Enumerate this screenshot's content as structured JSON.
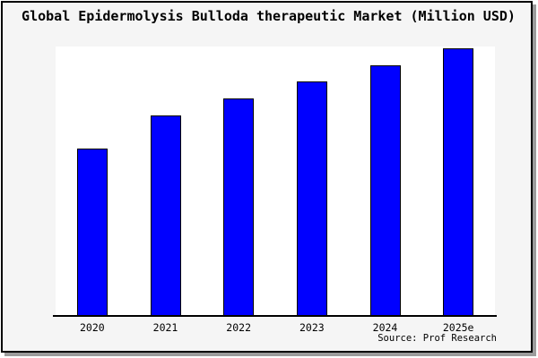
{
  "window": {
    "title": "Global Epidermolysis Bulloda therapeutic Market (Million USD)",
    "source_label": "Source: Prof Research"
  },
  "chart_data": {
    "type": "bar",
    "title": "Global Epidermolysis Bulloda therapeutic Market (Million USD)",
    "categories": [
      "2020",
      "2021",
      "2022",
      "2023",
      "2024",
      "2025e"
    ],
    "values": [
      62.8,
      75.1,
      81.4,
      87.7,
      93.7,
      100
    ],
    "values_note": "No y-axis ticks or data labels shown in image; values are relative bar heights normalized to 2025e = 100",
    "xlabel": "",
    "ylabel": "",
    "ylim": [
      0,
      100.3
    ],
    "grid": false,
    "legend": null,
    "source": "Source: Prof Research",
    "bar_color": "#0000ff",
    "bar_edge_color": "#000000"
  },
  "colors": {
    "window_background": "#f5f5f5",
    "plot_background": "#ffffff",
    "frame_border": "#000000",
    "frame_shadow": "#9c9c9c",
    "bar_fill": "#0000ff",
    "bar_edge": "#000000",
    "text": "#000000"
  }
}
